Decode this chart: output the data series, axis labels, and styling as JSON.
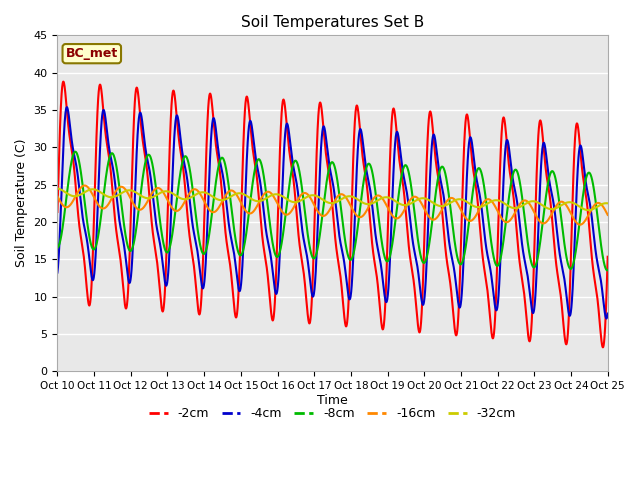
{
  "title": "Soil Temperatures Set B",
  "xlabel": "Time",
  "ylabel": "Soil Temperature (C)",
  "annotation": "BC_met",
  "xlim_days": 15,
  "ylim": [
    0,
    45
  ],
  "yticks": [
    0,
    5,
    10,
    15,
    20,
    25,
    30,
    35,
    40,
    45
  ],
  "xtick_labels": [
    "Oct 10",
    "Oct 11",
    "Oct 12",
    "Oct 13",
    "Oct 14",
    "Oct 15",
    "Oct 16",
    "Oct 17",
    "Oct 18",
    "Oct 19",
    "Oct 20",
    "Oct 21",
    "Oct 22",
    "Oct 23",
    "Oct 24",
    "Oct 25"
  ],
  "series": {
    "-2cm": {
      "color": "#ff0000",
      "lw": 1.5
    },
    "-4cm": {
      "color": "#0000cc",
      "lw": 1.5
    },
    "-8cm": {
      "color": "#00bb00",
      "lw": 1.5
    },
    "-16cm": {
      "color": "#ff8800",
      "lw": 1.5
    },
    "-32cm": {
      "color": "#cccc00",
      "lw": 1.5
    }
  },
  "bg_color": "#e8e8e8",
  "grid_color": "#ffffff"
}
